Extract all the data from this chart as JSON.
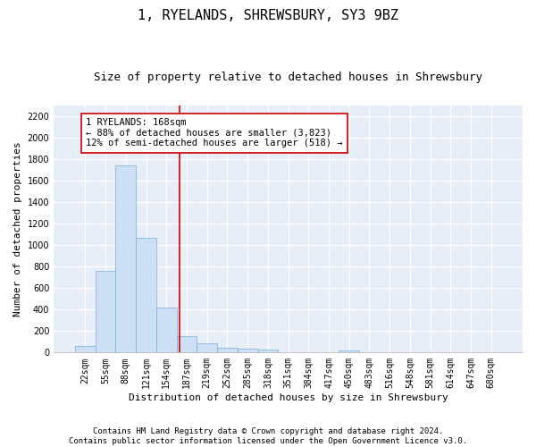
{
  "title": "1, RYELANDS, SHREWSBURY, SY3 9BZ",
  "subtitle": "Size of property relative to detached houses in Shrewsbury",
  "xlabel": "Distribution of detached houses by size in Shrewsbury",
  "ylabel": "Number of detached properties",
  "bar_color": "#ccdff5",
  "bar_edge_color": "#7aafd4",
  "background_color": "#e8eef8",
  "grid_color": "#ffffff",
  "fig_background": "#ffffff",
  "categories": [
    "22sqm",
    "55sqm",
    "88sqm",
    "121sqm",
    "154sqm",
    "187sqm",
    "219sqm",
    "252sqm",
    "285sqm",
    "318sqm",
    "351sqm",
    "384sqm",
    "417sqm",
    "450sqm",
    "483sqm",
    "516sqm",
    "548sqm",
    "581sqm",
    "614sqm",
    "647sqm",
    "680sqm"
  ],
  "values": [
    60,
    760,
    1740,
    1070,
    420,
    155,
    85,
    47,
    40,
    28,
    0,
    0,
    0,
    18,
    0,
    0,
    0,
    0,
    0,
    0,
    0
  ],
  "ylim": [
    0,
    2300
  ],
  "yticks": [
    0,
    200,
    400,
    600,
    800,
    1000,
    1200,
    1400,
    1600,
    1800,
    2000,
    2200
  ],
  "vline_x": 4.65,
  "vline_color": "#cc0000",
  "annotation_text": "1 RYELANDS: 168sqm\n← 88% of detached houses are smaller (3,823)\n12% of semi-detached houses are larger (518) →",
  "annotation_box_color": "#ffffff",
  "annotation_box_edge_color": "#cc0000",
  "footer_line1": "Contains HM Land Registry data © Crown copyright and database right 2024.",
  "footer_line2": "Contains public sector information licensed under the Open Government Licence v3.0.",
  "title_fontsize": 11,
  "subtitle_fontsize": 9,
  "label_fontsize": 8,
  "tick_fontsize": 7,
  "annotation_fontsize": 7.5,
  "footer_fontsize": 6.5
}
